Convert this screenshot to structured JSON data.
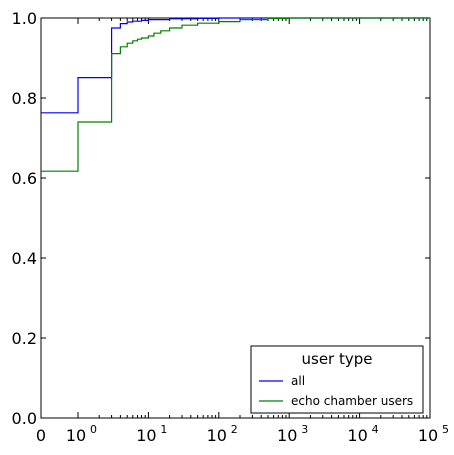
{
  "chart_data": {
    "type": "line",
    "title": "",
    "xlabel": "",
    "ylabel": "",
    "x_scale": "symlog",
    "xlim": [
      0,
      100000
    ],
    "ylim": [
      0.0,
      1.0
    ],
    "grid": false,
    "x_ticks": [
      {
        "value": 0,
        "base": "0",
        "exp": ""
      },
      {
        "value": 1,
        "base": "10",
        "exp": "0"
      },
      {
        "value": 10,
        "base": "10",
        "exp": "1"
      },
      {
        "value": 100,
        "base": "10",
        "exp": "2"
      },
      {
        "value": 1000,
        "base": "10",
        "exp": "3"
      },
      {
        "value": 10000,
        "base": "10",
        "exp": "4"
      },
      {
        "value": 100000,
        "base": "10",
        "exp": "5"
      }
    ],
    "y_ticks": [
      "0.0",
      "0.2",
      "0.4",
      "0.6",
      "0.8",
      "1.0"
    ],
    "legend": {
      "title": "user type",
      "position": "lower-right"
    },
    "series": [
      {
        "name": "all",
        "color": "#0000ff",
        "step": true,
        "points": [
          [
            0,
            0.763
          ],
          [
            1,
            0.851
          ],
          [
            3,
            0.975
          ],
          [
            4,
            0.986
          ],
          [
            5,
            0.99
          ],
          [
            6,
            0.992
          ],
          [
            8,
            0.994
          ],
          [
            10,
            0.996
          ],
          [
            20,
            0.998
          ],
          [
            50,
            0.999
          ],
          [
            100,
            1.0
          ],
          [
            100000,
            1.0
          ]
        ]
      },
      {
        "name": "echo chamber users",
        "color": "#008000",
        "step": true,
        "points": [
          [
            0,
            0.617
          ],
          [
            1,
            0.74
          ],
          [
            3,
            0.911
          ],
          [
            4,
            0.928
          ],
          [
            5,
            0.937
          ],
          [
            6,
            0.943
          ],
          [
            7,
            0.947
          ],
          [
            8,
            0.95
          ],
          [
            10,
            0.955
          ],
          [
            12,
            0.962
          ],
          [
            15,
            0.968
          ],
          [
            20,
            0.975
          ],
          [
            30,
            0.982
          ],
          [
            50,
            0.987
          ],
          [
            100,
            0.991
          ],
          [
            200,
            0.996
          ],
          [
            500,
            0.999
          ],
          [
            1000,
            1.0
          ],
          [
            100000,
            1.0
          ]
        ]
      }
    ]
  }
}
